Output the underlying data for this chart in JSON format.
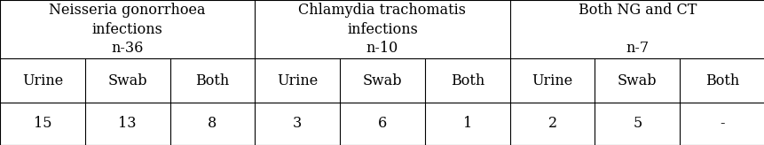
{
  "group_headers": [
    "Neisseria gonorrhoea\ninfections\nn-36",
    "Chlamydia trachomatis\ninfections\nn-10",
    "Both NG and CT\n\nn-7"
  ],
  "sub_headers": [
    "Urine",
    "Swab",
    "Both",
    "Urine",
    "Swab",
    "Both",
    "Urine",
    "Swab",
    "Both"
  ],
  "data_row": [
    "15",
    "13",
    "8",
    "3",
    "6",
    "1",
    "2",
    "5",
    "-"
  ],
  "n_cols": 9,
  "group_col_spans": [
    3,
    3,
    3
  ],
  "background_color": "#ffffff",
  "line_color": "#000000",
  "text_color": "#000000",
  "font_family": "DejaVu Serif",
  "header_fontsize": 11.5,
  "sub_fontsize": 11.5,
  "data_fontsize": 11.5,
  "row_tops": [
    1.0,
    0.595,
    0.295
  ],
  "fig_width": 8.62,
  "fig_height": 1.64,
  "dpi": 100
}
